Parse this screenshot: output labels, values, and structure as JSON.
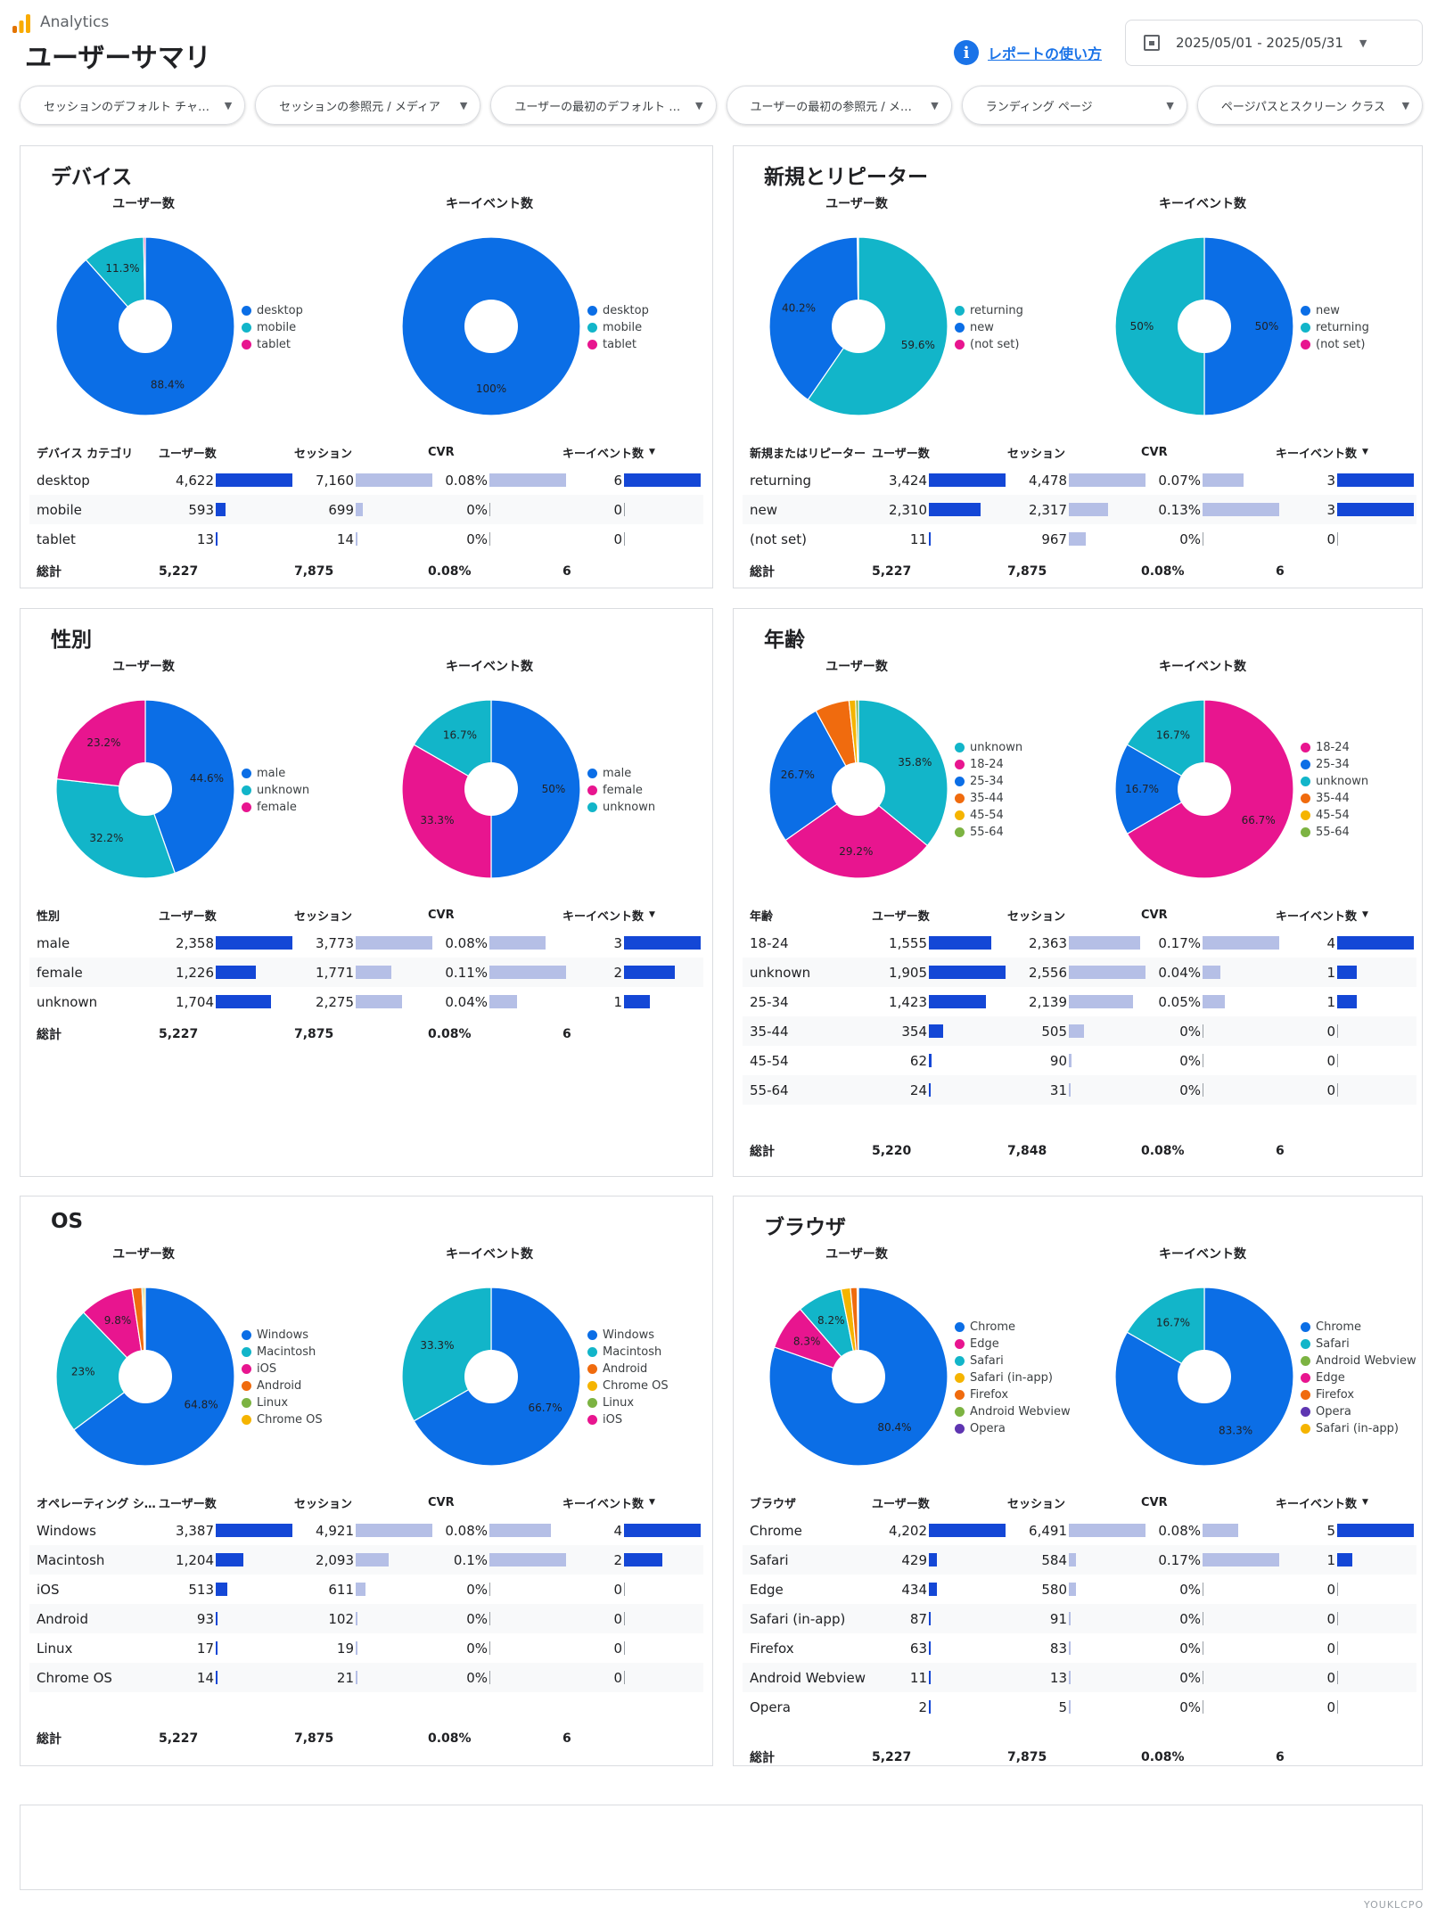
{
  "header": {
    "app_name": "Analytics",
    "page_title": "ユーザーサマリ",
    "help_icon": "info-icon",
    "help_link": "レポートの使い方",
    "date_range": "2025/05/01 - 2025/05/31"
  },
  "filters": [
    "セッションのデフォルト チャ…",
    "セッションの参照元 / メディア",
    "ユーザーの最初のデフォルト …",
    "ユーザーの最初の参照元 / メ…",
    "ランディング ページ",
    "ページパスとスクリーン クラス"
  ],
  "colors": {
    "blue": "#0b6ee6",
    "teal": "#12b5c9",
    "pink": "#e8158f",
    "orange": "#f06b0e",
    "yellowgreen": "#7cb342",
    "yellow": "#f5b400",
    "purple": "#5e35b1",
    "bar_dark": "#1447d6",
    "bar_light": "#b5bfe6"
  },
  "cards": [
    {
      "title": "デバイス",
      "charts": [
        {
          "title": "ユーザー数",
          "slices": [
            {
              "label": "desktop",
              "value": 88.4,
              "color": "#0b6ee6",
              "pct": "88.4%"
            },
            {
              "label": "mobile",
              "value": 11.3,
              "color": "#12b5c9",
              "pct": "11.3%"
            },
            {
              "label": "tablet",
              "value": 0.3,
              "color": "#e8158f",
              "pct": ""
            }
          ]
        },
        {
          "title": "キーイベント数",
          "slices": [
            {
              "label": "desktop",
              "value": 100,
              "color": "#0b6ee6",
              "pct": "100%"
            },
            {
              "label": "mobile",
              "value": 0,
              "color": "#12b5c9",
              "pct": ""
            },
            {
              "label": "tablet",
              "value": 0,
              "color": "#e8158f",
              "pct": ""
            }
          ]
        }
      ],
      "headers": [
        "デバイス カテゴリ",
        "ユーザー数",
        "セッション",
        "CVR",
        "キーイベント数"
      ],
      "rows": [
        [
          "desktop",
          "4,622",
          "7,160",
          "0.08%",
          "6"
        ],
        [
          "mobile",
          "593",
          "699",
          "0%",
          "0"
        ],
        [
          "tablet",
          "13",
          "14",
          "0%",
          "0"
        ]
      ],
      "totals": [
        "総計",
        "5,227",
        "7,875",
        "0.08%",
        "6"
      ]
    },
    {
      "title": "新規とリピーター",
      "charts": [
        {
          "title": "ユーザー数",
          "slices": [
            {
              "label": "returning",
              "value": 59.6,
              "color": "#12b5c9",
              "pct": "59.6%"
            },
            {
              "label": "new",
              "value": 40.2,
              "color": "#0b6ee6",
              "pct": "40.2%"
            },
            {
              "label": "(not set)",
              "value": 0.2,
              "color": "#e8158f",
              "pct": ""
            }
          ]
        },
        {
          "title": "キーイベント数",
          "slices": [
            {
              "label": "new",
              "value": 50,
              "color": "#0b6ee6",
              "pct": "50%"
            },
            {
              "label": "returning",
              "value": 50,
              "color": "#12b5c9",
              "pct": "50%"
            },
            {
              "label": "(not set)",
              "value": 0,
              "color": "#e8158f",
              "pct": ""
            }
          ]
        }
      ],
      "headers": [
        "新規またはリピーター",
        "ユーザー数",
        "セッション",
        "CVR",
        "キーイベント数"
      ],
      "rows": [
        [
          "returning",
          "3,424",
          "4,478",
          "0.07%",
          "3"
        ],
        [
          "new",
          "2,310",
          "2,317",
          "0.13%",
          "3"
        ],
        [
          "(not set)",
          "11",
          "967",
          "0%",
          "0"
        ]
      ],
      "totals": [
        "総計",
        "5,227",
        "7,875",
        "0.08%",
        "6"
      ]
    },
    {
      "title": "性別",
      "charts": [
        {
          "title": "ユーザー数",
          "slices": [
            {
              "label": "male",
              "value": 44.6,
              "color": "#0b6ee6",
              "pct": "44.6%"
            },
            {
              "label": "unknown",
              "value": 32.2,
              "color": "#12b5c9",
              "pct": "32.2%"
            },
            {
              "label": "female",
              "value": 23.2,
              "color": "#e8158f",
              "pct": "23.2%"
            }
          ]
        },
        {
          "title": "キーイベント数",
          "slices": [
            {
              "label": "male",
              "value": 50,
              "color": "#0b6ee6",
              "pct": "50%"
            },
            {
              "label": "female",
              "value": 33.3,
              "color": "#e8158f",
              "pct": "33.3%"
            },
            {
              "label": "unknown",
              "value": 16.7,
              "color": "#12b5c9",
              "pct": "16.7%"
            }
          ]
        }
      ],
      "headers": [
        "性別",
        "ユーザー数",
        "セッション",
        "CVR",
        "キーイベント数"
      ],
      "rows": [
        [
          "male",
          "2,358",
          "3,773",
          "0.08%",
          "3"
        ],
        [
          "female",
          "1,226",
          "1,771",
          "0.11%",
          "2"
        ],
        [
          "unknown",
          "1,704",
          "2,275",
          "0.04%",
          "1"
        ]
      ],
      "totals": [
        "総計",
        "5,227",
        "7,875",
        "0.08%",
        "6"
      ]
    },
    {
      "title": "年齢",
      "charts": [
        {
          "title": "ユーザー数",
          "slices": [
            {
              "label": "unknown",
              "value": 35.8,
              "color": "#12b5c9",
              "pct": "35.8%"
            },
            {
              "label": "18-24",
              "value": 29.2,
              "color": "#e8158f",
              "pct": "29.2%"
            },
            {
              "label": "25-34",
              "value": 26.7,
              "color": "#0b6ee6",
              "pct": "26.7%"
            },
            {
              "label": "35-44",
              "value": 6.2,
              "color": "#f06b0e",
              "pct": ""
            },
            {
              "label": "45-54",
              "value": 1.2,
              "color": "#f5b400",
              "pct": ""
            },
            {
              "label": "55-64",
              "value": 0.5,
              "color": "#7cb342",
              "pct": ""
            }
          ]
        },
        {
          "title": "キーイベント数",
          "slices": [
            {
              "label": "18-24",
              "value": 66.7,
              "color": "#e8158f",
              "pct": "66.7%"
            },
            {
              "label": "25-34",
              "value": 16.7,
              "color": "#0b6ee6",
              "pct": "16.7%"
            },
            {
              "label": "unknown",
              "value": 16.7,
              "color": "#12b5c9",
              "pct": "16.7%"
            },
            {
              "label": "35-44",
              "value": 0,
              "color": "#f06b0e",
              "pct": ""
            },
            {
              "label": "45-54",
              "value": 0,
              "color": "#f5b400",
              "pct": ""
            },
            {
              "label": "55-64",
              "value": 0,
              "color": "#7cb342",
              "pct": ""
            }
          ]
        }
      ],
      "headers": [
        "年齢",
        "ユーザー数",
        "セッション",
        "CVR",
        "キーイベント数"
      ],
      "rows": [
        [
          "18-24",
          "1,555",
          "2,363",
          "0.17%",
          "4"
        ],
        [
          "unknown",
          "1,905",
          "2,556",
          "0.04%",
          "1"
        ],
        [
          "25-34",
          "1,423",
          "2,139",
          "0.05%",
          "1"
        ],
        [
          "35-44",
          "354",
          "505",
          "0%",
          "0"
        ],
        [
          "45-54",
          "62",
          "90",
          "0%",
          "0"
        ],
        [
          "55-64",
          "24",
          "31",
          "0%",
          "0"
        ]
      ],
      "totals": [
        "総計",
        "5,220",
        "7,848",
        "0.08%",
        "6"
      ]
    },
    {
      "title": "OS",
      "charts": [
        {
          "title": "ユーザー数",
          "slices": [
            {
              "label": "Windows",
              "value": 64.8,
              "color": "#0b6ee6",
              "pct": "64.8%"
            },
            {
              "label": "Macintosh",
              "value": 23,
              "color": "#12b5c9",
              "pct": "23%"
            },
            {
              "label": "iOS",
              "value": 9.8,
              "color": "#e8158f",
              "pct": "9.8%"
            },
            {
              "label": "Android",
              "value": 1.8,
              "color": "#f06b0e",
              "pct": ""
            },
            {
              "label": "Linux",
              "value": 0.3,
              "color": "#7cb342",
              "pct": ""
            },
            {
              "label": "Chrome OS",
              "value": 0.3,
              "color": "#f5b400",
              "pct": ""
            }
          ]
        },
        {
          "title": "キーイベント数",
          "slices": [
            {
              "label": "Windows",
              "value": 66.7,
              "color": "#0b6ee6",
              "pct": "66.7%"
            },
            {
              "label": "Macintosh",
              "value": 33.3,
              "color": "#12b5c9",
              "pct": "33.3%"
            },
            {
              "label": "Android",
              "value": 0,
              "color": "#f06b0e",
              "pct": ""
            },
            {
              "label": "Chrome OS",
              "value": 0,
              "color": "#f5b400",
              "pct": ""
            },
            {
              "label": "Linux",
              "value": 0,
              "color": "#7cb342",
              "pct": ""
            },
            {
              "label": "iOS",
              "value": 0,
              "color": "#e8158f",
              "pct": ""
            }
          ]
        }
      ],
      "headers": [
        "オペレーティング シ…",
        "ユーザー数",
        "セッション",
        "CVR",
        "キーイベント数"
      ],
      "rows": [
        [
          "Windows",
          "3,387",
          "4,921",
          "0.08%",
          "4"
        ],
        [
          "Macintosh",
          "1,204",
          "2,093",
          "0.1%",
          "2"
        ],
        [
          "iOS",
          "513",
          "611",
          "0%",
          "0"
        ],
        [
          "Android",
          "93",
          "102",
          "0%",
          "0"
        ],
        [
          "Linux",
          "17",
          "19",
          "0%",
          "0"
        ],
        [
          "Chrome OS",
          "14",
          "21",
          "0%",
          "0"
        ]
      ],
      "totals": [
        "総計",
        "5,227",
        "7,875",
        "0.08%",
        "6"
      ]
    },
    {
      "title": "ブラウザ",
      "charts": [
        {
          "title": "ユーザー数",
          "slices": [
            {
              "label": "Chrome",
              "value": 80.4,
              "color": "#0b6ee6",
              "pct": "80.4%"
            },
            {
              "label": "Edge",
              "value": 8.3,
              "color": "#e8158f",
              "pct": "8.3%"
            },
            {
              "label": "Safari",
              "value": 8.2,
              "color": "#12b5c9",
              "pct": "8.2%"
            },
            {
              "label": "Safari (in-app)",
              "value": 1.7,
              "color": "#f5b400",
              "pct": ""
            },
            {
              "label": "Firefox",
              "value": 1.2,
              "color": "#f06b0e",
              "pct": ""
            },
            {
              "label": "Android Webview",
              "value": 0.2,
              "color": "#7cb342",
              "pct": ""
            },
            {
              "label": "Opera",
              "value": 0.04,
              "color": "#5e35b1",
              "pct": ""
            }
          ]
        },
        {
          "title": "キーイベント数",
          "slices": [
            {
              "label": "Chrome",
              "value": 83.3,
              "color": "#0b6ee6",
              "pct": "83.3%"
            },
            {
              "label": "Safari",
              "value": 16.7,
              "color": "#12b5c9",
              "pct": "16.7%"
            },
            {
              "label": "Android Webview",
              "value": 0,
              "color": "#7cb342",
              "pct": ""
            },
            {
              "label": "Edge",
              "value": 0,
              "color": "#e8158f",
              "pct": ""
            },
            {
              "label": "Firefox",
              "value": 0,
              "color": "#f06b0e",
              "pct": ""
            },
            {
              "label": "Opera",
              "value": 0,
              "color": "#5e35b1",
              "pct": ""
            },
            {
              "label": "Safari (in-app)",
              "value": 0,
              "color": "#f5b400",
              "pct": ""
            }
          ]
        }
      ],
      "headers": [
        "ブラウザ",
        "ユーザー数",
        "セッション",
        "CVR",
        "キーイベント数"
      ],
      "rows": [
        [
          "Chrome",
          "4,202",
          "6,491",
          "0.08%",
          "5"
        ],
        [
          "Safari",
          "429",
          "584",
          "0.17%",
          "1"
        ],
        [
          "Edge",
          "434",
          "580",
          "0%",
          "0"
        ],
        [
          "Safari (in-app)",
          "87",
          "91",
          "0%",
          "0"
        ],
        [
          "Firefox",
          "63",
          "83",
          "0%",
          "0"
        ],
        [
          "Android Webview",
          "11",
          "13",
          "0%",
          "0"
        ],
        [
          "Opera",
          "2",
          "5",
          "0%",
          "0"
        ]
      ],
      "totals": [
        "総計",
        "5,227",
        "7,875",
        "0.08%",
        "6"
      ]
    }
  ],
  "watermark": "YOUKLCPO"
}
